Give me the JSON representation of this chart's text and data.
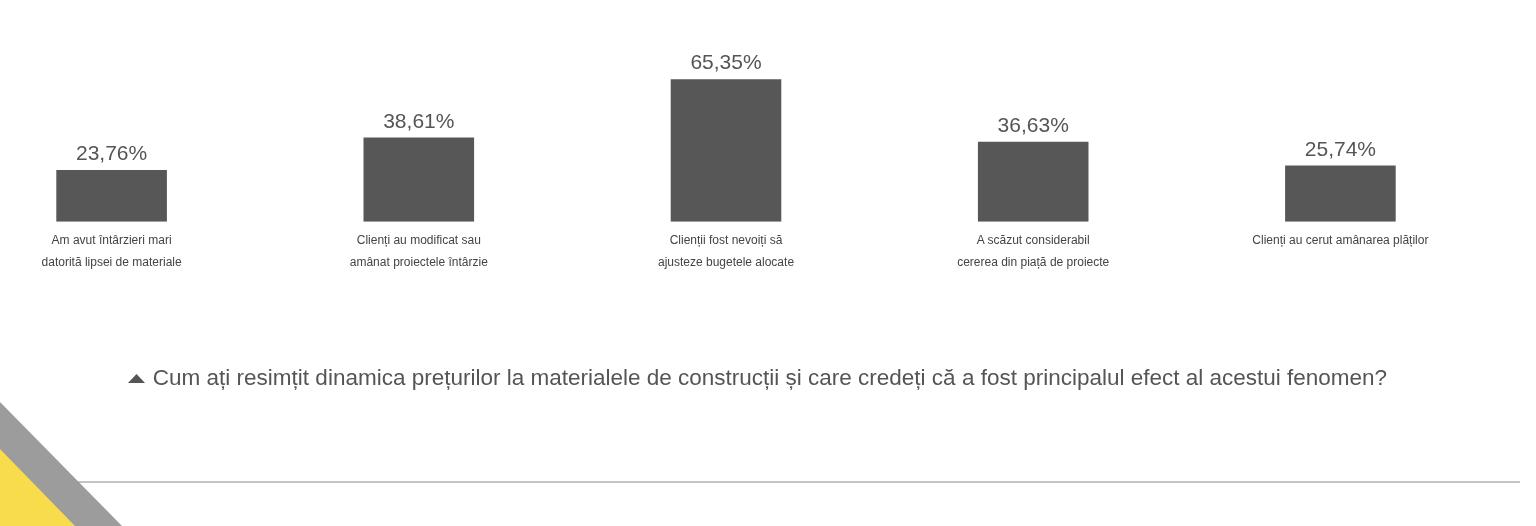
{
  "chart_data": {
    "type": "bar",
    "title": "Cum ați resimțit dinamica prețurilor la materialele de construcții și care credeți că a fost principalul efect al acestui fenomen?",
    "categories": [
      "Am avut întârzieri mari datorită lipsei de materiale",
      "Clienți au modificat sau amânat proiectele întârzie",
      "Clienții fost nevoiți să ajusteze bugetele alocate",
      "A scăzut considerabil cererea din piață de proiecte",
      "Clienți au cerut amânarea plăților"
    ],
    "values": [
      23.76,
      38.61,
      65.35,
      36.63,
      25.74
    ],
    "value_labels": [
      "23,76%",
      "38,61%",
      "65,35%",
      "36,63%",
      "25,74%"
    ],
    "color": "#575757",
    "tick_labels": "x"
  }
}
